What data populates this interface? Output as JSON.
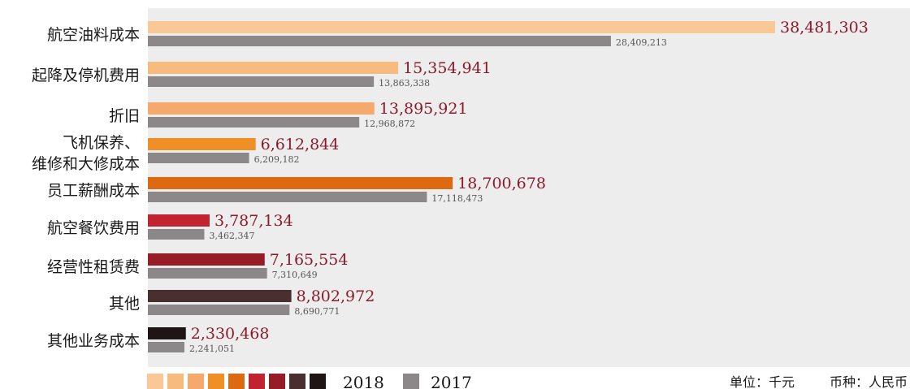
{
  "chart_data": {
    "type": "bar",
    "orientation": "horizontal",
    "categories": [
      [
        "航空油料成本"
      ],
      [
        "起降及停机费用"
      ],
      [
        "折旧"
      ],
      [
        "飞机保养、",
        "维修和大修成本"
      ],
      [
        "员工薪酬成本"
      ],
      [
        "航空餐饮费用"
      ],
      [
        "经营性租赁费"
      ],
      [
        "其他"
      ],
      [
        "其他业务成本"
      ]
    ],
    "series": [
      {
        "name": "2018",
        "values": [
          38481303,
          15354941,
          13895921,
          6612844,
          18700678,
          3787134,
          7165554,
          8802972,
          2330468
        ],
        "labels": [
          "38,481,303",
          "15,354,941",
          "13,895,921",
          "6,612,844",
          "18,700,678",
          "3,787,134",
          "7,165,554",
          "8,802,972",
          "2,330,468"
        ],
        "colors": [
          "#f9c896",
          "#f8bb7f",
          "#f6a96d",
          "#ef8f26",
          "#dd6a10",
          "#bf2430",
          "#961c25",
          "#4a2f31",
          "#1f1515"
        ]
      },
      {
        "name": "2017",
        "values": [
          28409213,
          13863338,
          12968872,
          6209182,
          17118473,
          3462347,
          7310649,
          8690771,
          2241051
        ],
        "labels": [
          "28,409,213",
          "13,863,338",
          "12,968,872",
          "6,209,182",
          "17,118,473",
          "3,462,347",
          "7,310,649",
          "8,690,771",
          "2,241,051"
        ],
        "color": "#8c8889"
      }
    ],
    "xlim": [
      0,
      40000000
    ],
    "grid": false,
    "legend_position": "bottom-left"
  },
  "legend": {
    "label_2018": "2018",
    "label_2017": "2017",
    "swatch_colors_2018": [
      "#f9c896",
      "#f8bb7f",
      "#f6a96d",
      "#ef8f26",
      "#dd6a10",
      "#bf2430",
      "#961c25",
      "#4a2f31",
      "#1f1515"
    ],
    "swatch_color_2017": "#8c8889"
  },
  "footnote": {
    "unit_label": "单位：千元",
    "currency_label": "币种：人民币"
  },
  "colors": {
    "plot_background": "#ededed",
    "value_2018_text": "#8b1a2b",
    "value_2017_text": "#555555"
  }
}
